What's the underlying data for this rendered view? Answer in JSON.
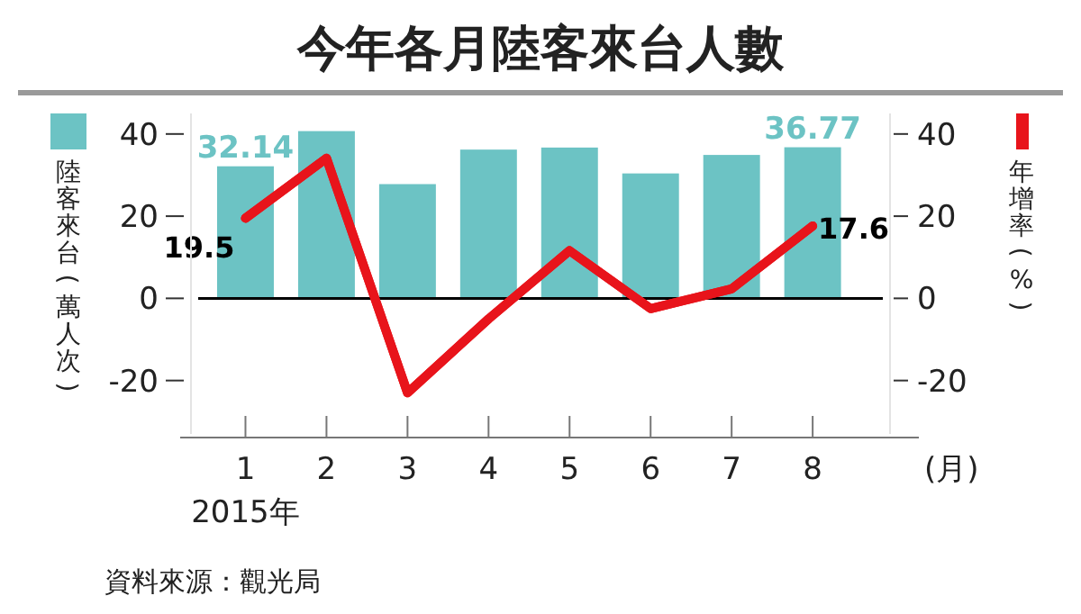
{
  "chart_data": {
    "type": "bar",
    "title": "今年各月陸客來台人數",
    "ylabel": "陸客來台(萬人次)",
    "y2label": "年增率(%)",
    "xlabel": "(月)",
    "annotations": [
      "2015年",
      "資料來源：觀光局"
    ],
    "categories": [
      "1",
      "2",
      "3",
      "4",
      "5",
      "6",
      "7",
      "8"
    ],
    "series": [
      {
        "color": "#6cc3c4",
        "values": [
          32.14,
          40.7,
          27.8,
          36.2,
          36.7,
          30.4,
          34.9,
          36.77
        ],
        "value_labels": [
          "32.14",
          null,
          null,
          null,
          null,
          null,
          null,
          "36.77"
        ]
      },
      {
        "type": "line",
        "color": "#e8141b",
        "values": [
          19.5,
          34.1,
          -23,
          -5,
          11.6,
          -2.5,
          2.3,
          17.6
        ],
        "value_labels": [
          "19.5",
          null,
          null,
          null,
          null,
          null,
          null,
          "17.6"
        ]
      }
    ],
    "ylim": [
      -33,
      45
    ],
    "yticks": [
      -20,
      0,
      20,
      40
    ],
    "y2lim": [
      -33,
      45
    ],
    "y2ticks": [
      -20,
      0,
      20,
      40
    ],
    "marker": "none",
    "line_style": "solid"
  }
}
